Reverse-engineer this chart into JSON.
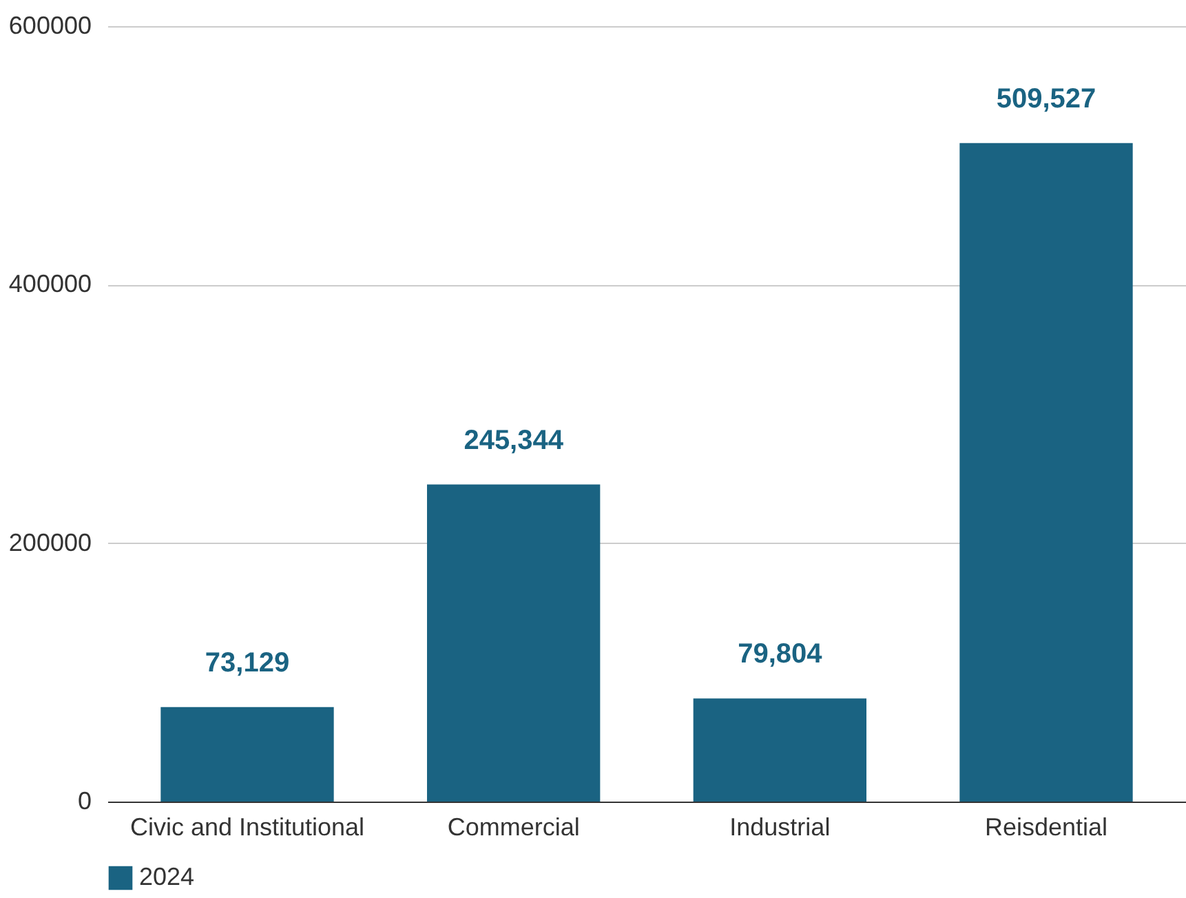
{
  "chart_data": {
    "type": "bar",
    "categories": [
      "Civic and Institutional",
      "Commercial",
      "Industrial",
      "Reisdential"
    ],
    "series": [
      {
        "name": "2024",
        "color": "#1a6382",
        "values": [
          73129,
          245344,
          79804,
          509527
        ],
        "value_labels": [
          "73,129",
          "245,344",
          "79,804",
          "509,527"
        ]
      }
    ],
    "ylim": [
      0,
      600000
    ],
    "yticks": [
      0,
      200000,
      400000,
      600000
    ],
    "grid": "y",
    "legend": "bottom"
  }
}
